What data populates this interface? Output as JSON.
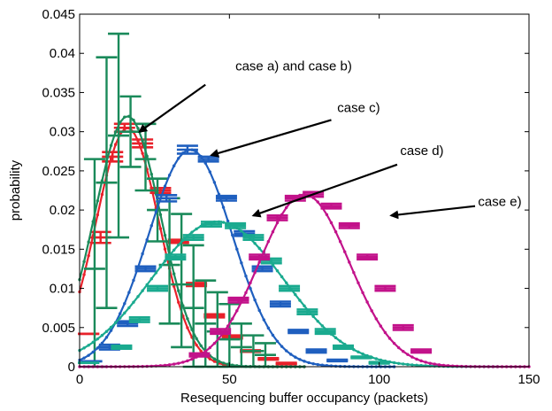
{
  "chart_data": {
    "type": "line",
    "title": "",
    "xlabel": "Resequencing buffer occupancy (packets)",
    "ylabel": "probability",
    "xlim": [
      0,
      150
    ],
    "ylim": [
      0,
      0.045
    ],
    "x_ticks": [
      "0",
      "50",
      "100",
      "150"
    ],
    "y_ticks": [
      "0",
      "0.005",
      "0.01",
      "0.015",
      "0.02",
      "0.025",
      "0.03",
      "0.035",
      "0.04",
      "0.045"
    ],
    "grid": false,
    "legend": "none",
    "series": [
      {
        "color": "#e8212a",
        "model_curve": {
          "mu": 16,
          "sigma": 10.5,
          "peak": 0.0305,
          "x_max": 75
        },
        "error_bars": [
          {
            "x": 3,
            "y": 0.0042,
            "lo": 0.0042,
            "hi": 0.0042
          },
          {
            "x": 7,
            "y": 0.0165,
            "lo": 0.0158,
            "hi": 0.0172
          },
          {
            "x": 11,
            "y": 0.0268,
            "lo": 0.0262,
            "hi": 0.0274
          },
          {
            "x": 15,
            "y": 0.0305,
            "lo": 0.03,
            "hi": 0.031
          },
          {
            "x": 21,
            "y": 0.0285,
            "lo": 0.028,
            "hi": 0.029
          },
          {
            "x": 27,
            "y": 0.0225,
            "lo": 0.0222,
            "hi": 0.0228
          },
          {
            "x": 33,
            "y": 0.016,
            "lo": 0.0158,
            "hi": 0.0162
          },
          {
            "x": 39,
            "y": 0.0105,
            "lo": 0.0103,
            "hi": 0.0107
          },
          {
            "x": 45,
            "y": 0.0065,
            "lo": 0.0063,
            "hi": 0.0067
          },
          {
            "x": 51,
            "y": 0.0038,
            "lo": 0.0036,
            "hi": 0.004
          },
          {
            "x": 57,
            "y": 0.002,
            "lo": 0.0019,
            "hi": 0.0021
          },
          {
            "x": 63,
            "y": 0.001,
            "lo": 0.0009,
            "hi": 0.0011
          },
          {
            "x": 69,
            "y": 0.0004,
            "lo": 0.0003,
            "hi": 0.0005
          }
        ]
      },
      {
        "color": "#1a8a5a",
        "model_curve": {
          "mu": 16,
          "sigma": 11,
          "peak": 0.032,
          "x_max": 75
        },
        "error_bars": [
          {
            "x": 5,
            "y": 0.0125,
            "lo": 0.0,
            "hi": 0.0265
          },
          {
            "x": 9,
            "y": 0.0235,
            "lo": 0.0075,
            "hi": 0.0395
          },
          {
            "x": 13,
            "y": 0.0295,
            "lo": 0.0165,
            "hi": 0.0425
          },
          {
            "x": 17,
            "y": 0.03,
            "lo": 0.0255,
            "hi": 0.0345
          },
          {
            "x": 22,
            "y": 0.0265,
            "lo": 0.0225,
            "hi": 0.031
          },
          {
            "x": 26,
            "y": 0.02,
            "lo": 0.016,
            "hi": 0.024
          },
          {
            "x": 30,
            "y": 0.013,
            "lo": 0.0055,
            "hi": 0.0215
          },
          {
            "x": 34,
            "y": 0.0105,
            "lo": 0.0025,
            "hi": 0.0195
          },
          {
            "x": 38,
            "y": 0.0075,
            "lo": 0.0,
            "hi": 0.0155
          },
          {
            "x": 42,
            "y": 0.0055,
            "lo": 0.0,
            "hi": 0.011
          },
          {
            "x": 46,
            "y": 0.0045,
            "lo": 0.0,
            "hi": 0.0095
          },
          {
            "x": 50,
            "y": 0.0035,
            "lo": 0.0,
            "hi": 0.008
          },
          {
            "x": 54,
            "y": 0.0025,
            "lo": 0.0,
            "hi": 0.0055
          },
          {
            "x": 58,
            "y": 0.002,
            "lo": 0.0,
            "hi": 0.004
          },
          {
            "x": 62,
            "y": 0.0015,
            "lo": 0.0,
            "hi": 0.003
          }
        ]
      },
      {
        "color": "#1f5fbf",
        "model_curve": {
          "mu": 37,
          "sigma": 14,
          "peak": 0.0277,
          "x_max": 105
        },
        "error_bars": [
          {
            "x": 4,
            "y": 0.0007,
            "lo": 0.0007,
            "hi": 0.0007
          },
          {
            "x": 10,
            "y": 0.0025,
            "lo": 0.0022,
            "hi": 0.0028
          },
          {
            "x": 16,
            "y": 0.0055,
            "lo": 0.0052,
            "hi": 0.0058
          },
          {
            "x": 22,
            "y": 0.0125,
            "lo": 0.0122,
            "hi": 0.0128
          },
          {
            "x": 29,
            "y": 0.0215,
            "lo": 0.0211,
            "hi": 0.0219
          },
          {
            "x": 36,
            "y": 0.0277,
            "lo": 0.0272,
            "hi": 0.0282
          },
          {
            "x": 43,
            "y": 0.0265,
            "lo": 0.0262,
            "hi": 0.0268
          },
          {
            "x": 49,
            "y": 0.0215,
            "lo": 0.0212,
            "hi": 0.0218
          },
          {
            "x": 55,
            "y": 0.017,
            "lo": 0.0167,
            "hi": 0.0173
          },
          {
            "x": 61,
            "y": 0.0125,
            "lo": 0.0122,
            "hi": 0.0128
          },
          {
            "x": 67,
            "y": 0.008,
            "lo": 0.0077,
            "hi": 0.0083
          },
          {
            "x": 73,
            "y": 0.0045,
            "lo": 0.0043,
            "hi": 0.0047
          },
          {
            "x": 79,
            "y": 0.002,
            "lo": 0.0018,
            "hi": 0.0022
          },
          {
            "x": 86,
            "y": 0.0008,
            "lo": 0.0007,
            "hi": 0.0009
          }
        ]
      },
      {
        "color": "#1aaa8f",
        "model_curve": {
          "mu": 46,
          "sigma": 22,
          "peak": 0.0185,
          "x_max": 140
        },
        "error_bars": [
          {
            "x": 3,
            "y": 0.0005,
            "lo": 0.0005,
            "hi": 0.0005
          },
          {
            "x": 14,
            "y": 0.0025,
            "lo": 0.0023,
            "hi": 0.0027
          },
          {
            "x": 20,
            "y": 0.006,
            "lo": 0.0057,
            "hi": 0.0063
          },
          {
            "x": 26,
            "y": 0.01,
            "lo": 0.0097,
            "hi": 0.0103
          },
          {
            "x": 32,
            "y": 0.014,
            "lo": 0.0137,
            "hi": 0.0143
          },
          {
            "x": 38,
            "y": 0.0165,
            "lo": 0.0162,
            "hi": 0.0168
          },
          {
            "x": 44,
            "y": 0.0182,
            "lo": 0.0179,
            "hi": 0.0185
          },
          {
            "x": 52,
            "y": 0.018,
            "lo": 0.0177,
            "hi": 0.0183
          },
          {
            "x": 58,
            "y": 0.0165,
            "lo": 0.0162,
            "hi": 0.0168
          },
          {
            "x": 64,
            "y": 0.0135,
            "lo": 0.0132,
            "hi": 0.0138
          },
          {
            "x": 70,
            "y": 0.01,
            "lo": 0.0097,
            "hi": 0.0103
          },
          {
            "x": 76,
            "y": 0.007,
            "lo": 0.0067,
            "hi": 0.0073
          },
          {
            "x": 82,
            "y": 0.0045,
            "lo": 0.0042,
            "hi": 0.0048
          },
          {
            "x": 88,
            "y": 0.0025,
            "lo": 0.0023,
            "hi": 0.0027
          },
          {
            "x": 94,
            "y": 0.0012,
            "lo": 0.0011,
            "hi": 0.0013
          },
          {
            "x": 100,
            "y": 0.0005,
            "lo": 0.0004,
            "hi": 0.0006
          }
        ]
      },
      {
        "color": "#c2128a",
        "model_curve": {
          "mu": 75,
          "sigma": 15,
          "peak": 0.022,
          "x_max": 150
        },
        "error_bars": [
          {
            "x": 40,
            "y": 0.0015,
            "lo": 0.0013,
            "hi": 0.0017
          },
          {
            "x": 47,
            "y": 0.0045,
            "lo": 0.0042,
            "hi": 0.0048
          },
          {
            "x": 53,
            "y": 0.0085,
            "lo": 0.0082,
            "hi": 0.0088
          },
          {
            "x": 60,
            "y": 0.014,
            "lo": 0.0137,
            "hi": 0.0143
          },
          {
            "x": 66,
            "y": 0.019,
            "lo": 0.0187,
            "hi": 0.0193
          },
          {
            "x": 72,
            "y": 0.0215,
            "lo": 0.0212,
            "hi": 0.0218
          },
          {
            "x": 78,
            "y": 0.022,
            "lo": 0.0217,
            "hi": 0.0223
          },
          {
            "x": 84,
            "y": 0.0205,
            "lo": 0.0202,
            "hi": 0.0208
          },
          {
            "x": 90,
            "y": 0.018,
            "lo": 0.0177,
            "hi": 0.0183
          },
          {
            "x": 96,
            "y": 0.014,
            "lo": 0.0137,
            "hi": 0.0143
          },
          {
            "x": 102,
            "y": 0.01,
            "lo": 0.0097,
            "hi": 0.0103
          },
          {
            "x": 108,
            "y": 0.005,
            "lo": 0.0047,
            "hi": 0.0053
          },
          {
            "x": 114,
            "y": 0.002,
            "lo": 0.0018,
            "hi": 0.0022
          }
        ]
      }
    ],
    "annotations": [
      {
        "text": "case a) and case b)",
        "text_x": 52,
        "text_y": 0.0378,
        "arrow_from": [
          42,
          0.036
        ],
        "arrow_to": [
          20,
          0.03
        ]
      },
      {
        "text": "case c)",
        "text_x": 86,
        "text_y": 0.0325,
        "arrow_from": [
          84,
          0.0315
        ],
        "arrow_to": [
          44,
          0.027
        ]
      },
      {
        "text": "case d)",
        "text_x": 107,
        "text_y": 0.027,
        "arrow_from": [
          106,
          0.0258
        ],
        "arrow_to": [
          58,
          0.0193
        ]
      },
      {
        "text": "case e)",
        "text_x": 133,
        "text_y": 0.0205,
        "arrow_from": [
          132,
          0.0205
        ],
        "arrow_to": [
          104,
          0.0193
        ]
      }
    ]
  }
}
